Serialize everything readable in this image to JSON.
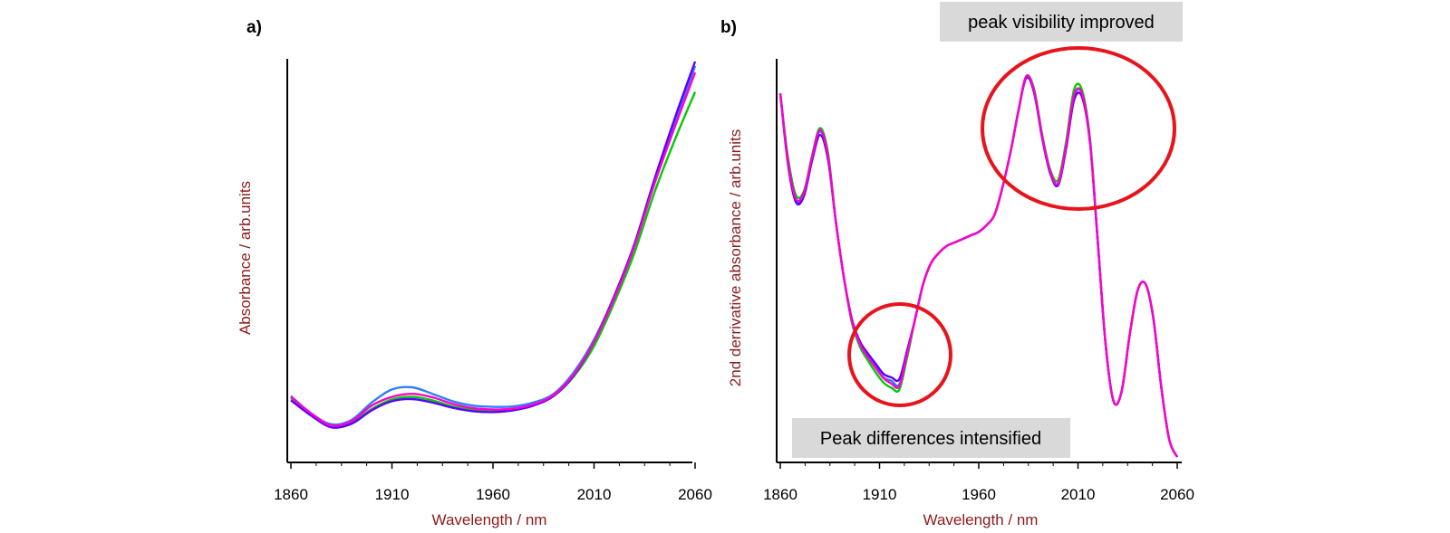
{
  "chart_data": [
    {
      "panel_label": "a)",
      "type": "line",
      "xlabel": "Wavelength / nm",
      "ylabel": "Absorbance / arb.units",
      "xlim": [
        1860,
        2060
      ],
      "xticks": [
        1860,
        1910,
        1960,
        2010,
        2060
      ],
      "yticks_shown": false,
      "series": [
        {
          "color": "#2f7dff",
          "x": [
            1860,
            1870,
            1880,
            1890,
            1900,
            1910,
            1920,
            1930,
            1940,
            1950,
            1960,
            1970,
            1980,
            1990,
            2000,
            2010,
            2020,
            2030,
            2040,
            2050,
            2060
          ],
          "y": [
            0.13,
            0.09,
            0.065,
            0.075,
            0.115,
            0.145,
            0.15,
            0.135,
            0.118,
            0.108,
            0.105,
            0.106,
            0.115,
            0.135,
            0.185,
            0.26,
            0.36,
            0.48,
            0.63,
            0.76,
            0.89
          ]
        },
        {
          "color": "#00cc00",
          "x": [
            1860,
            1870,
            1880,
            1890,
            1900,
            1910,
            1920,
            1930,
            1940,
            1950,
            1960,
            1970,
            1980,
            1990,
            2000,
            2010,
            2020,
            2030,
            2040,
            2050,
            2060
          ],
          "y": [
            0.125,
            0.088,
            0.06,
            0.068,
            0.1,
            0.122,
            0.128,
            0.12,
            0.106,
            0.098,
            0.096,
            0.099,
            0.11,
            0.13,
            0.175,
            0.245,
            0.345,
            0.46,
            0.6,
            0.72,
            0.83
          ]
        },
        {
          "color": "#5a00ff",
          "x": [
            1860,
            1870,
            1880,
            1890,
            1900,
            1910,
            1920,
            1930,
            1940,
            1950,
            1960,
            1970,
            1980,
            1990,
            2000,
            2010,
            2020,
            2030,
            2040,
            2050,
            2060
          ],
          "y": [
            0.12,
            0.085,
            0.058,
            0.066,
            0.097,
            0.118,
            0.123,
            0.115,
            0.103,
            0.095,
            0.093,
            0.097,
            0.108,
            0.13,
            0.178,
            0.255,
            0.36,
            0.48,
            0.63,
            0.77,
            0.9
          ]
        },
        {
          "color": "#ff00cc",
          "x": [
            1860,
            1870,
            1880,
            1890,
            1900,
            1910,
            1920,
            1930,
            1940,
            1950,
            1960,
            1970,
            1980,
            1990,
            2000,
            2010,
            2020,
            2030,
            2040,
            2050,
            2060
          ],
          "y": [
            0.128,
            0.09,
            0.062,
            0.072,
            0.108,
            0.128,
            0.135,
            0.127,
            0.112,
            0.102,
            0.099,
            0.101,
            0.111,
            0.132,
            0.18,
            0.255,
            0.355,
            0.475,
            0.62,
            0.75,
            0.875
          ]
        }
      ]
    },
    {
      "panel_label": "b)",
      "type": "line",
      "xlabel": "Wavelength / nm",
      "ylabel": "2nd derrivative absorbance / arb.units",
      "xlim": [
        1860,
        2060
      ],
      "xticks": [
        1860,
        1910,
        1960,
        2010,
        2060
      ],
      "yticks_shown": false,
      "annotations": [
        {
          "text": "peak visibility improved",
          "target_x_range": [
            1983,
            2033
          ]
        },
        {
          "text": "Peak differences intensified",
          "target_x_range": [
            1896,
            1944
          ]
        }
      ],
      "series": [
        {
          "color": "#2f7dff",
          "x": [
            1860,
            1864,
            1868,
            1872,
            1876,
            1880,
            1884,
            1888,
            1892,
            1896,
            1900,
            1904,
            1908,
            1912,
            1916,
            1920,
            1924,
            1928,
            1932,
            1936,
            1940,
            1944,
            1948,
            1952,
            1956,
            1960,
            1964,
            1968,
            1972,
            1976,
            1980,
            1984,
            1988,
            1992,
            1996,
            2000,
            2004,
            2008,
            2012,
            2016,
            2020,
            2024,
            2028,
            2032,
            2036,
            2040,
            2044,
            2048,
            2052,
            2056,
            2060
          ],
          "y": [
            0.95,
            0.75,
            0.64,
            0.66,
            0.76,
            0.84,
            0.77,
            0.58,
            0.42,
            0.3,
            0.23,
            0.19,
            0.16,
            0.13,
            0.12,
            0.11,
            0.2,
            0.3,
            0.4,
            0.46,
            0.49,
            0.51,
            0.52,
            0.53,
            0.54,
            0.55,
            0.57,
            0.6,
            0.68,
            0.78,
            0.9,
            1.0,
            0.95,
            0.82,
            0.72,
            0.69,
            0.8,
            0.94,
            0.95,
            0.82,
            0.52,
            0.22,
            0.06,
            0.09,
            0.25,
            0.38,
            0.4,
            0.3,
            0.1,
            -0.05,
            -0.1
          ]
        },
        {
          "color": "#00cc00",
          "x": [
            1860,
            1864,
            1868,
            1872,
            1876,
            1880,
            1884,
            1888,
            1892,
            1896,
            1900,
            1904,
            1908,
            1912,
            1916,
            1920,
            1924,
            1928,
            1932,
            1936,
            1940,
            1944,
            1948,
            1952,
            1956,
            1960,
            1964,
            1968,
            1972,
            1976,
            1980,
            1984,
            1988,
            1992,
            1996,
            2000,
            2004,
            2008,
            2012,
            2016,
            2020,
            2024,
            2028,
            2032,
            2036,
            2040,
            2044,
            2048,
            2052,
            2056,
            2060
          ],
          "y": [
            0.95,
            0.76,
            0.655,
            0.67,
            0.77,
            0.85,
            0.78,
            0.58,
            0.42,
            0.29,
            0.22,
            0.18,
            0.145,
            0.115,
            0.1,
            0.095,
            0.19,
            0.3,
            0.4,
            0.46,
            0.49,
            0.51,
            0.52,
            0.53,
            0.54,
            0.55,
            0.57,
            0.6,
            0.68,
            0.78,
            0.9,
            1.0,
            0.96,
            0.83,
            0.73,
            0.7,
            0.81,
            0.96,
            0.96,
            0.82,
            0.52,
            0.22,
            0.06,
            0.09,
            0.25,
            0.38,
            0.4,
            0.3,
            0.1,
            -0.05,
            -0.1
          ]
        },
        {
          "color": "#5a00ff",
          "x": [
            1860,
            1864,
            1868,
            1872,
            1876,
            1880,
            1884,
            1888,
            1892,
            1896,
            1900,
            1904,
            1908,
            1912,
            1916,
            1920,
            1924,
            1928,
            1932,
            1936,
            1940,
            1944,
            1948,
            1952,
            1956,
            1960,
            1964,
            1968,
            1972,
            1976,
            1980,
            1984,
            1988,
            1992,
            1996,
            2000,
            2004,
            2008,
            2012,
            2016,
            2020,
            2024,
            2028,
            2032,
            2036,
            2040,
            2044,
            2048,
            2052,
            2056,
            2060
          ],
          "y": [
            0.95,
            0.74,
            0.635,
            0.655,
            0.755,
            0.83,
            0.76,
            0.58,
            0.42,
            0.3,
            0.235,
            0.2,
            0.17,
            0.14,
            0.13,
            0.125,
            0.21,
            0.3,
            0.4,
            0.46,
            0.49,
            0.51,
            0.52,
            0.53,
            0.54,
            0.55,
            0.57,
            0.6,
            0.68,
            0.78,
            0.9,
            0.995,
            0.95,
            0.82,
            0.72,
            0.685,
            0.79,
            0.93,
            0.94,
            0.81,
            0.52,
            0.22,
            0.06,
            0.09,
            0.25,
            0.38,
            0.4,
            0.3,
            0.1,
            -0.05,
            -0.1
          ]
        },
        {
          "color": "#ff00cc",
          "x": [
            1860,
            1864,
            1868,
            1872,
            1876,
            1880,
            1884,
            1888,
            1892,
            1896,
            1900,
            1904,
            1908,
            1912,
            1916,
            1920,
            1924,
            1928,
            1932,
            1936,
            1940,
            1944,
            1948,
            1952,
            1956,
            1960,
            1964,
            1968,
            1972,
            1976,
            1980,
            1984,
            1988,
            1992,
            1996,
            2000,
            2004,
            2008,
            2012,
            2016,
            2020,
            2024,
            2028,
            2032,
            2036,
            2040,
            2044,
            2048,
            2052,
            2056,
            2060
          ],
          "y": [
            0.95,
            0.75,
            0.645,
            0.665,
            0.765,
            0.845,
            0.77,
            0.58,
            0.42,
            0.295,
            0.228,
            0.19,
            0.158,
            0.128,
            0.112,
            0.105,
            0.2,
            0.3,
            0.4,
            0.46,
            0.49,
            0.51,
            0.52,
            0.53,
            0.54,
            0.55,
            0.57,
            0.6,
            0.68,
            0.78,
            0.9,
            1.0,
            0.955,
            0.825,
            0.725,
            0.69,
            0.8,
            0.945,
            0.95,
            0.815,
            0.52,
            0.22,
            0.06,
            0.09,
            0.25,
            0.38,
            0.4,
            0.3,
            0.1,
            -0.05,
            -0.1
          ]
        }
      ]
    }
  ]
}
